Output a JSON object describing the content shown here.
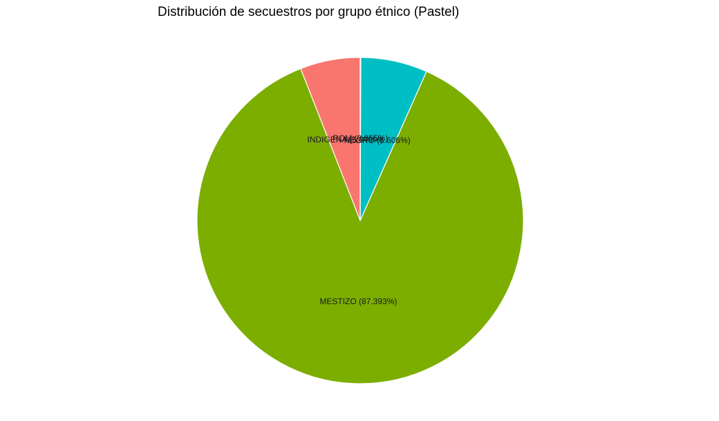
{
  "chart_data": {
    "type": "pie",
    "title": "Distribución de secuestros por grupo étnico (Pastel)",
    "slices": [
      {
        "label": "INDIGENA",
        "value": 5.946,
        "display": "INDIGENA (5.946%)",
        "color": "#F8766D"
      },
      {
        "label": "MESTIZO",
        "value": 87.393,
        "display": "MESTIZO (87.393%)",
        "color": "#7CAE00"
      },
      {
        "label": "NEGRO",
        "value": 6.606,
        "display": "NEGRO (6.606%)",
        "color": "#00BFC4"
      },
      {
        "label": "ROM",
        "value": 0.055,
        "display": "ROM (0.055%)",
        "color": "#C77CFF"
      }
    ],
    "start": "12 o'clock",
    "direction": "counterclockwise",
    "legend": "none",
    "grid": false,
    "slice_border_color": "#ffffff"
  }
}
